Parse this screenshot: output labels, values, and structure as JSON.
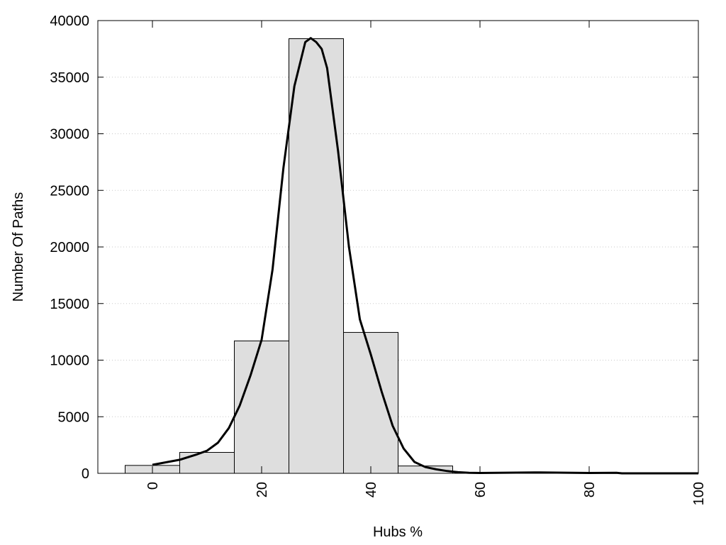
{
  "chart_data": {
    "type": "bar",
    "title": "",
    "xlabel": "Hubs %",
    "ylabel": "Number Of Paths",
    "xlim": [
      -10,
      100
    ],
    "ylim": [
      0,
      40000
    ],
    "x_ticks": [
      0,
      20,
      40,
      60,
      80,
      100
    ],
    "y_ticks": [
      0,
      5000,
      10000,
      15000,
      20000,
      25000,
      30000,
      35000,
      40000
    ],
    "grid": "horizontal dotted",
    "bar_width": 10,
    "bars": [
      {
        "x": 0,
        "value": 700
      },
      {
        "x": 10,
        "value": 1850
      },
      {
        "x": 20,
        "value": 11700
      },
      {
        "x": 30,
        "value": 38400
      },
      {
        "x": 40,
        "value": 12450
      },
      {
        "x": 50,
        "value": 650
      }
    ],
    "curve": {
      "x": [
        0,
        5,
        8,
        10,
        12,
        14,
        16,
        18,
        20,
        22,
        24,
        26,
        28,
        29,
        30,
        31,
        32,
        34,
        36,
        38,
        40,
        42,
        44,
        46,
        48,
        50,
        52,
        54,
        56,
        58,
        60,
        70,
        80,
        85,
        86,
        90,
        100
      ],
      "y": [
        750,
        1200,
        1650,
        2000,
        2700,
        4000,
        6000,
        8700,
        11800,
        18000,
        27000,
        34200,
        38100,
        38450,
        38100,
        37500,
        35800,
        28500,
        20000,
        13600,
        10500,
        7200,
        4200,
        2200,
        1000,
        550,
        350,
        200,
        100,
        50,
        30,
        80,
        30,
        50,
        0,
        0,
        0
      ]
    },
    "bar_color": "#dedede",
    "line_color": "#000000"
  }
}
